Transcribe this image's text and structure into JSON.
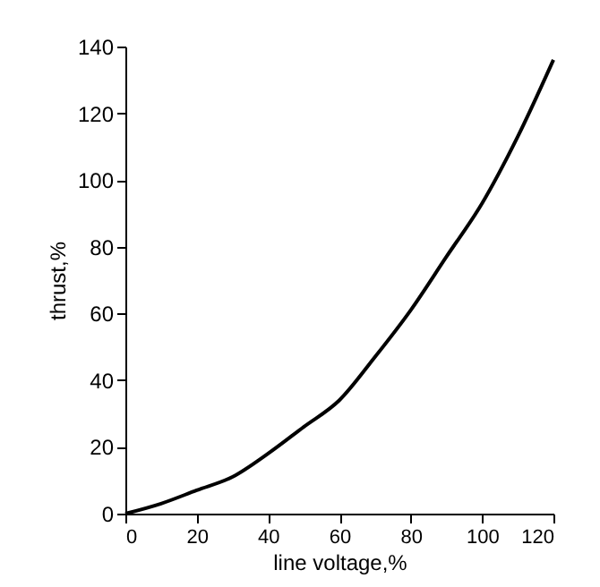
{
  "chart_data": {
    "type": "line",
    "xlabel": "line voltage,%",
    "ylabel": "thrust,%",
    "x": [
      0,
      10,
      20,
      30,
      40,
      50,
      60,
      70,
      80,
      90,
      100,
      110,
      120
    ],
    "series": [
      {
        "color": "#000000",
        "values": [
          0,
          3,
          7,
          11,
          18,
          26,
          34,
          47,
          61,
          77,
          93,
          113,
          136
        ]
      }
    ],
    "xlim": [
      0,
      120
    ],
    "xticks": [
      0,
      20,
      40,
      60,
      80,
      100,
      120
    ],
    "ylim": [
      0,
      140
    ],
    "yticks": [
      0,
      20,
      40,
      60,
      80,
      100,
      120,
      140
    ],
    "grid": false,
    "marker": "none",
    "line_style": "solid"
  }
}
